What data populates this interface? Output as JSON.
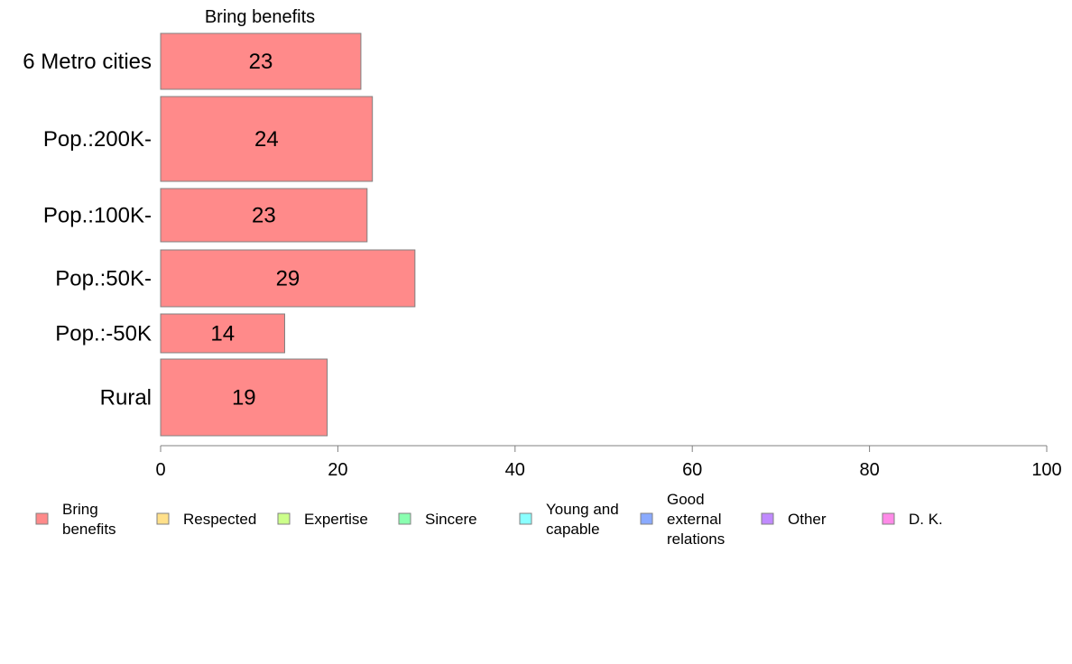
{
  "chart_data": {
    "type": "bar",
    "orientation": "horizontal",
    "title": "Bring benefits",
    "categories": [
      "6 Metro cities",
      "Pop.:200K-",
      "Pop.:100K-",
      "Pop.:50K-",
      "Pop.:-50K",
      "Rural"
    ],
    "series": [
      {
        "name": "Bring benefits",
        "values": [
          22.6,
          23.9,
          23.3,
          28.7,
          14.0,
          18.8
        ],
        "labels": [
          "23",
          "24",
          "23",
          "29",
          "14",
          "19"
        ]
      }
    ],
    "xlim": [
      0,
      100
    ],
    "x_ticks": [
      "0",
      "20",
      "40",
      "60",
      "80",
      "100"
    ],
    "grid": false,
    "legend_position": "bottom",
    "legend": [
      {
        "label": "Bring\nbenefits",
        "color": "#ff8a8a"
      },
      {
        "label": "Respected",
        "color": "#ffe08a"
      },
      {
        "label": "Expertise",
        "color": "#ccff8a"
      },
      {
        "label": "Sincere",
        "color": "#8affb0"
      },
      {
        "label": "Young and\ncapable",
        "color": "#8affff"
      },
      {
        "label": "Good\nexternal\nrelations",
        "color": "#8aaaff"
      },
      {
        "label": "Other",
        "color": "#c08aff"
      },
      {
        "label": "D. K.",
        "color": "#ff8ae8"
      }
    ],
    "bar_color": "#ff8a8a",
    "bar_border_color": "#808080"
  }
}
